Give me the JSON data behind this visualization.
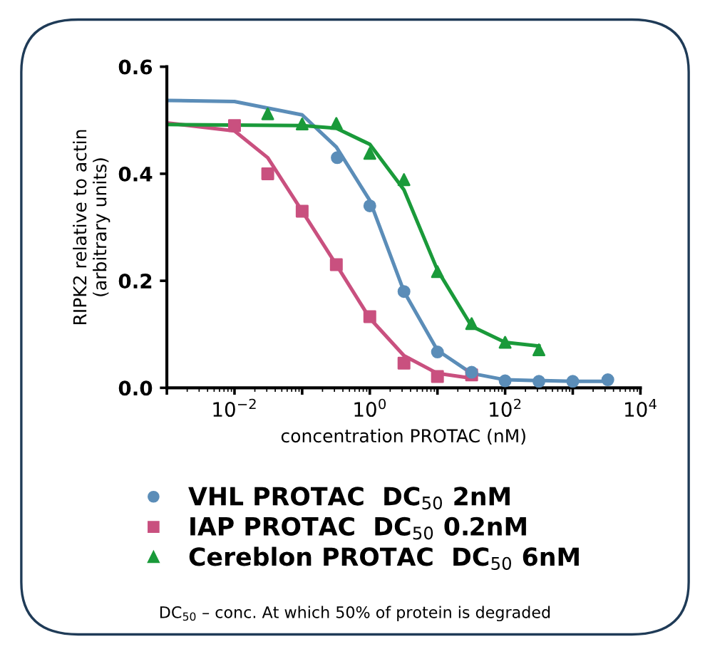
{
  "chart_data": {
    "type": "scatter",
    "xlabel": "concentration PROTAC (nM)",
    "ylabel": "RIPK2 relative to actin\n(arbitrary units)",
    "log": "x",
    "xlim": [
      0.001,
      10000
    ],
    "xticks": [
      {
        "value": 0.001,
        "label": null
      },
      {
        "value": 0.01,
        "label": "10$^{−2}$"
      },
      {
        "value": 0.1,
        "label": null
      },
      {
        "value": 1,
        "label": "10$^{0}$"
      },
      {
        "value": 10,
        "label": null
      },
      {
        "value": 100,
        "label": "10$^{2}$"
      },
      {
        "value": 1000,
        "label": null
      },
      {
        "value": 10000,
        "label": "10$^{4}$"
      }
    ],
    "ylim": [
      0,
      0.6
    ],
    "yticks": [
      {
        "value": 0,
        "label": "0.0"
      },
      {
        "value": 0.2,
        "label": "0.2"
      },
      {
        "value": 0.4,
        "label": "0.4"
      },
      {
        "value": 0.6,
        "label": "0.6"
      }
    ],
    "grid": false,
    "legend": "bottom",
    "series": [
      {
        "name": "VHL PROTAC  DC$_{50}$ 2nM",
        "color": "#5b8db8",
        "marker": "circle",
        "x": [
          0.33,
          1,
          3.2,
          10,
          32,
          100,
          316,
          1000,
          3300
        ],
        "values": [
          0.43,
          0.34,
          0.18,
          0.067,
          0.029,
          0.013,
          0.012,
          0.012,
          0.015
        ]
      },
      {
        "name": "IAP PROTAC  DC$_{50}$ 0.2nM",
        "color": "#c9507f",
        "marker": "square",
        "x": [
          0.01,
          0.031,
          0.1,
          0.32,
          1,
          3.2,
          10,
          32
        ],
        "values": [
          0.49,
          0.4,
          0.33,
          0.23,
          0.133,
          0.046,
          0.021,
          0.024
        ]
      },
      {
        "name": "Cereblon PROTAC  DC$_{50}$ 6nM",
        "color": "#1a9a3a",
        "marker": "triangle",
        "x": [
          0.031,
          0.1,
          0.32,
          1,
          3.2,
          10,
          32,
          100,
          316
        ],
        "values": [
          0.512,
          0.493,
          0.494,
          0.438,
          0.389,
          0.217,
          0.12,
          0.085,
          0.071
        ]
      },
      {
        "type": "line",
        "color": "#5b8db8",
        "x": [
          0.001,
          0.01,
          0.1,
          0.32,
          1,
          3.2,
          10,
          32,
          100,
          1000,
          3300
        ],
        "values": [
          0.537,
          0.535,
          0.51,
          0.45,
          0.35,
          0.18,
          0.07,
          0.027,
          0.015,
          0.012,
          0.012
        ]
      },
      {
        "type": "line",
        "color": "#c9507f",
        "x": [
          0.001,
          0.01,
          0.031,
          0.1,
          0.32,
          1,
          3.2,
          10,
          32
        ],
        "values": [
          0.495,
          0.48,
          0.43,
          0.33,
          0.23,
          0.13,
          0.06,
          0.027,
          0.018
        ]
      },
      {
        "type": "line",
        "color": "#1a9a3a",
        "x": [
          0.001,
          0.1,
          0.32,
          1,
          3.2,
          10,
          32,
          100,
          316
        ],
        "values": [
          0.492,
          0.49,
          0.485,
          0.455,
          0.37,
          0.22,
          0.115,
          0.085,
          0.078
        ]
      }
    ],
    "annotations": [
      "DC$_{50}$ – conc. At which 50% of protein is degraded"
    ]
  }
}
